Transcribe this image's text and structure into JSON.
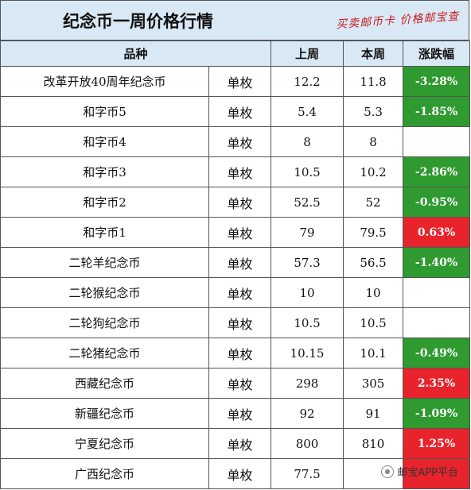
{
  "title": "纪念币一周价格行情",
  "stamp": "买卖邮币卡 价格邮宝查",
  "columns": [
    "品种",
    "上周",
    "本周",
    "涨跌幅"
  ],
  "rows": [
    {
      "name": "改革开放40周年纪念币",
      "unit": "单枚",
      "last": "12.2",
      "this": "11.8",
      "change": "-3.28%",
      "trend": "down"
    },
    {
      "name": "和字币5",
      "unit": "单枚",
      "last": "5.4",
      "this": "5.3",
      "change": "-1.85%",
      "trend": "down"
    },
    {
      "name": "和字币4",
      "unit": "单枚",
      "last": "8",
      "this": "8",
      "change": "",
      "trend": "none"
    },
    {
      "name": "和字币3",
      "unit": "单枚",
      "last": "10.5",
      "this": "10.2",
      "change": "-2.86%",
      "trend": "down"
    },
    {
      "name": "和字币2",
      "unit": "单枚",
      "last": "52.5",
      "this": "52",
      "change": "-0.95%",
      "trend": "down"
    },
    {
      "name": "和字币1",
      "unit": "单枚",
      "last": "79",
      "this": "79.5",
      "change": "0.63%",
      "trend": "up"
    },
    {
      "name": "二轮羊纪念币",
      "unit": "单枚",
      "last": "57.3",
      "this": "56.5",
      "change": "-1.40%",
      "trend": "down"
    },
    {
      "name": "二轮猴纪念币",
      "unit": "单枚",
      "last": "10",
      "this": "10",
      "change": "",
      "trend": "none"
    },
    {
      "name": "二轮狗纪念币",
      "unit": "单枚",
      "last": "10.5",
      "this": "10.5",
      "change": "",
      "trend": "none"
    },
    {
      "name": "二轮猪纪念币",
      "unit": "单枚",
      "last": "10.15",
      "this": "10.1",
      "change": "-0.49%",
      "trend": "down"
    },
    {
      "name": "西藏纪念币",
      "unit": "单枚",
      "last": "298",
      "this": "305",
      "change": "2.35%",
      "trend": "up"
    },
    {
      "name": "新疆纪念币",
      "unit": "单枚",
      "last": "92",
      "this": "91",
      "change": "-1.09%",
      "trend": "down"
    },
    {
      "name": "宁夏纪念币",
      "unit": "单枚",
      "last": "800",
      "this": "810",
      "change": "1.25%",
      "trend": "up"
    },
    {
      "name": "广西纪念币",
      "unit": "单枚",
      "last": "77.5",
      "this": "",
      "change": "",
      "trend": "up"
    }
  ],
  "watermark": "邮宝APP平台",
  "colors": {
    "header_bg": "#d9e8f5",
    "down": "#2f9a2f",
    "up": "#e8232b",
    "stamp": "#c81e1e"
  }
}
